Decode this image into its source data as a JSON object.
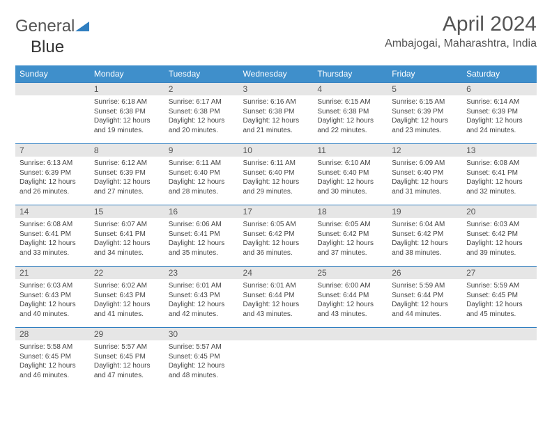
{
  "brand": {
    "general": "General",
    "blue": "Blue"
  },
  "title": "April 2024",
  "location": "Ambajogai, Maharashtra, India",
  "header_color": "#3f8fcb",
  "rule_color": "#2f7ec0",
  "daynum_bg": "#e6e6e6",
  "weekdays": [
    "Sunday",
    "Monday",
    "Tuesday",
    "Wednesday",
    "Thursday",
    "Friday",
    "Saturday"
  ],
  "weeks": [
    [
      {
        "n": "",
        "sr": "",
        "ss": "",
        "dl": ""
      },
      {
        "n": "1",
        "sr": "Sunrise: 6:18 AM",
        "ss": "Sunset: 6:38 PM",
        "dl": "Daylight: 12 hours and 19 minutes."
      },
      {
        "n": "2",
        "sr": "Sunrise: 6:17 AM",
        "ss": "Sunset: 6:38 PM",
        "dl": "Daylight: 12 hours and 20 minutes."
      },
      {
        "n": "3",
        "sr": "Sunrise: 6:16 AM",
        "ss": "Sunset: 6:38 PM",
        "dl": "Daylight: 12 hours and 21 minutes."
      },
      {
        "n": "4",
        "sr": "Sunrise: 6:15 AM",
        "ss": "Sunset: 6:38 PM",
        "dl": "Daylight: 12 hours and 22 minutes."
      },
      {
        "n": "5",
        "sr": "Sunrise: 6:15 AM",
        "ss": "Sunset: 6:39 PM",
        "dl": "Daylight: 12 hours and 23 minutes."
      },
      {
        "n": "6",
        "sr": "Sunrise: 6:14 AM",
        "ss": "Sunset: 6:39 PM",
        "dl": "Daylight: 12 hours and 24 minutes."
      }
    ],
    [
      {
        "n": "7",
        "sr": "Sunrise: 6:13 AM",
        "ss": "Sunset: 6:39 PM",
        "dl": "Daylight: 12 hours and 26 minutes."
      },
      {
        "n": "8",
        "sr": "Sunrise: 6:12 AM",
        "ss": "Sunset: 6:39 PM",
        "dl": "Daylight: 12 hours and 27 minutes."
      },
      {
        "n": "9",
        "sr": "Sunrise: 6:11 AM",
        "ss": "Sunset: 6:40 PM",
        "dl": "Daylight: 12 hours and 28 minutes."
      },
      {
        "n": "10",
        "sr": "Sunrise: 6:11 AM",
        "ss": "Sunset: 6:40 PM",
        "dl": "Daylight: 12 hours and 29 minutes."
      },
      {
        "n": "11",
        "sr": "Sunrise: 6:10 AM",
        "ss": "Sunset: 6:40 PM",
        "dl": "Daylight: 12 hours and 30 minutes."
      },
      {
        "n": "12",
        "sr": "Sunrise: 6:09 AM",
        "ss": "Sunset: 6:40 PM",
        "dl": "Daylight: 12 hours and 31 minutes."
      },
      {
        "n": "13",
        "sr": "Sunrise: 6:08 AM",
        "ss": "Sunset: 6:41 PM",
        "dl": "Daylight: 12 hours and 32 minutes."
      }
    ],
    [
      {
        "n": "14",
        "sr": "Sunrise: 6:08 AM",
        "ss": "Sunset: 6:41 PM",
        "dl": "Daylight: 12 hours and 33 minutes."
      },
      {
        "n": "15",
        "sr": "Sunrise: 6:07 AM",
        "ss": "Sunset: 6:41 PM",
        "dl": "Daylight: 12 hours and 34 minutes."
      },
      {
        "n": "16",
        "sr": "Sunrise: 6:06 AM",
        "ss": "Sunset: 6:41 PM",
        "dl": "Daylight: 12 hours and 35 minutes."
      },
      {
        "n": "17",
        "sr": "Sunrise: 6:05 AM",
        "ss": "Sunset: 6:42 PM",
        "dl": "Daylight: 12 hours and 36 minutes."
      },
      {
        "n": "18",
        "sr": "Sunrise: 6:05 AM",
        "ss": "Sunset: 6:42 PM",
        "dl": "Daylight: 12 hours and 37 minutes."
      },
      {
        "n": "19",
        "sr": "Sunrise: 6:04 AM",
        "ss": "Sunset: 6:42 PM",
        "dl": "Daylight: 12 hours and 38 minutes."
      },
      {
        "n": "20",
        "sr": "Sunrise: 6:03 AM",
        "ss": "Sunset: 6:42 PM",
        "dl": "Daylight: 12 hours and 39 minutes."
      }
    ],
    [
      {
        "n": "21",
        "sr": "Sunrise: 6:03 AM",
        "ss": "Sunset: 6:43 PM",
        "dl": "Daylight: 12 hours and 40 minutes."
      },
      {
        "n": "22",
        "sr": "Sunrise: 6:02 AM",
        "ss": "Sunset: 6:43 PM",
        "dl": "Daylight: 12 hours and 41 minutes."
      },
      {
        "n": "23",
        "sr": "Sunrise: 6:01 AM",
        "ss": "Sunset: 6:43 PM",
        "dl": "Daylight: 12 hours and 42 minutes."
      },
      {
        "n": "24",
        "sr": "Sunrise: 6:01 AM",
        "ss": "Sunset: 6:44 PM",
        "dl": "Daylight: 12 hours and 43 minutes."
      },
      {
        "n": "25",
        "sr": "Sunrise: 6:00 AM",
        "ss": "Sunset: 6:44 PM",
        "dl": "Daylight: 12 hours and 43 minutes."
      },
      {
        "n": "26",
        "sr": "Sunrise: 5:59 AM",
        "ss": "Sunset: 6:44 PM",
        "dl": "Daylight: 12 hours and 44 minutes."
      },
      {
        "n": "27",
        "sr": "Sunrise: 5:59 AM",
        "ss": "Sunset: 6:45 PM",
        "dl": "Daylight: 12 hours and 45 minutes."
      }
    ],
    [
      {
        "n": "28",
        "sr": "Sunrise: 5:58 AM",
        "ss": "Sunset: 6:45 PM",
        "dl": "Daylight: 12 hours and 46 minutes."
      },
      {
        "n": "29",
        "sr": "Sunrise: 5:57 AM",
        "ss": "Sunset: 6:45 PM",
        "dl": "Daylight: 12 hours and 47 minutes."
      },
      {
        "n": "30",
        "sr": "Sunrise: 5:57 AM",
        "ss": "Sunset: 6:45 PM",
        "dl": "Daylight: 12 hours and 48 minutes."
      },
      {
        "n": "",
        "sr": "",
        "ss": "",
        "dl": ""
      },
      {
        "n": "",
        "sr": "",
        "ss": "",
        "dl": ""
      },
      {
        "n": "",
        "sr": "",
        "ss": "",
        "dl": ""
      },
      {
        "n": "",
        "sr": "",
        "ss": "",
        "dl": ""
      }
    ]
  ]
}
